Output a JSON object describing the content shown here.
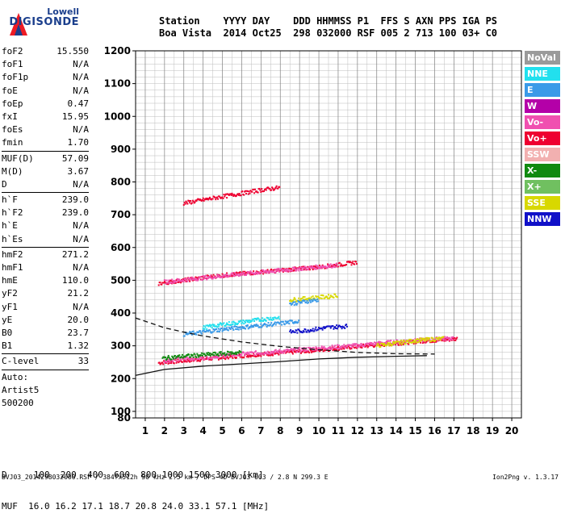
{
  "logo": {
    "top": "Lowell",
    "main": "DIGISONDE"
  },
  "header": {
    "labels": "Station    YYYY DAY    DDD HHMMSS P1  FFS S AXN PPS IGA PS",
    "values": "Boa Vista  2014 Oct25  298 032000 RSF 005 2 713 100 03+ C0"
  },
  "params_group1": [
    {
      "name": "foF2",
      "value": "15.550"
    },
    {
      "name": "foF1",
      "value": "N/A"
    },
    {
      "name": "foF1p",
      "value": "N/A"
    },
    {
      "name": "foE",
      "value": "N/A"
    },
    {
      "name": "foEp",
      "value": "0.47"
    },
    {
      "name": "fxI",
      "value": "15.95"
    },
    {
      "name": "foEs",
      "value": "N/A"
    },
    {
      "name": "fmin",
      "value": "1.70"
    }
  ],
  "params_group2": [
    {
      "name": "MUF(D)",
      "value": "57.09"
    },
    {
      "name": "M(D)",
      "value": "3.67"
    },
    {
      "name": "D",
      "value": "N/A"
    }
  ],
  "params_group3": [
    {
      "name": "h`F",
      "value": "239.0"
    },
    {
      "name": "h`F2",
      "value": "239.0"
    },
    {
      "name": "h`E",
      "value": "N/A"
    },
    {
      "name": "h`Es",
      "value": "N/A"
    }
  ],
  "params_group4": [
    {
      "name": "hmF2",
      "value": "271.2"
    },
    {
      "name": "hmF1",
      "value": "N/A"
    },
    {
      "name": "hmE",
      "value": "110.0"
    },
    {
      "name": "yF2",
      "value": "21.2"
    },
    {
      "name": "yF1",
      "value": "N/A"
    },
    {
      "name": "yE",
      "value": "20.0"
    },
    {
      "name": "B0",
      "value": "23.7"
    },
    {
      "name": "B1",
      "value": "1.32"
    }
  ],
  "clevel": {
    "name": "C-level",
    "value": "33"
  },
  "auto": {
    "line1": "Auto:",
    "line2": "Artist5",
    "line3": "500200"
  },
  "legend": [
    {
      "label": "NoVal",
      "color": "#9a9a9a"
    },
    {
      "label": "NNE",
      "color": "#22e0ee"
    },
    {
      "label": "E",
      "color": "#3a9ae8"
    },
    {
      "label": "W",
      "color": "#b400a8"
    },
    {
      "label": "Vo-",
      "color": "#f050b0"
    },
    {
      "label": "Vo+",
      "color": "#ee0030"
    },
    {
      "label": "SSW",
      "color": "#f2b0b0"
    },
    {
      "label": "X-",
      "color": "#108a10"
    },
    {
      "label": "X+",
      "color": "#70c060"
    },
    {
      "label": "SSE",
      "color": "#d8d800"
    },
    {
      "label": "NNW",
      "color": "#1010c8"
    }
  ],
  "bottom": {
    "d_line": "D     100  200  400  600  800 1000 1500 3000 [km]",
    "muf_line": "MUF  16.0 16.2 17.1 18.7 20.8 24.0 33.1 57.1 [MHz]"
  },
  "footer": {
    "left": "BVJ03_2014298032000.RSF / 384fx512h 50 kHz 2.5 km / DPS-4D BVJ03 003 / 2.8 N 299.3 E",
    "right": "Ion2Png v. 1.3.17"
  },
  "chart_data": {
    "type": "scatter",
    "xlim": [
      0.5,
      20.5
    ],
    "ylim": [
      80,
      1200
    ],
    "x_ticks": [
      1,
      2,
      3,
      4,
      5,
      6,
      7,
      8,
      9,
      10,
      11,
      12,
      13,
      14,
      15,
      16,
      17,
      18,
      19,
      20
    ],
    "y_ticks": [
      80,
      100,
      200,
      300,
      400,
      500,
      600,
      700,
      800,
      900,
      1000,
      1100,
      1200
    ],
    "grid": true,
    "legend_position": "right",
    "traces": [
      {
        "color": "#ee0030",
        "points": [
          [
            1.7,
            248
          ],
          [
            2.5,
            252
          ],
          [
            3.5,
            257
          ],
          [
            4.5,
            262
          ],
          [
            5.5,
            267
          ],
          [
            6.5,
            272
          ],
          [
            7.5,
            276
          ],
          [
            8.5,
            280
          ],
          [
            9.5,
            285
          ],
          [
            10.5,
            290
          ],
          [
            11.5,
            295
          ],
          [
            12.5,
            300
          ],
          [
            13.5,
            305
          ],
          [
            14.5,
            310
          ],
          [
            15.5,
            315
          ],
          [
            16.5,
            318
          ],
          [
            17.2,
            322
          ]
        ]
      },
      {
        "color": "#f050b0",
        "points": [
          [
            2,
            255
          ],
          [
            3,
            260
          ],
          [
            4,
            264
          ],
          [
            5,
            270
          ],
          [
            6,
            275
          ],
          [
            7,
            279
          ],
          [
            8,
            283
          ],
          [
            9,
            288
          ],
          [
            10,
            293
          ],
          [
            11,
            297
          ],
          [
            12,
            301
          ],
          [
            13,
            307
          ],
          [
            14,
            312
          ],
          [
            15,
            316
          ],
          [
            16,
            320
          ],
          [
            17,
            324
          ]
        ]
      },
      {
        "color": "#d8d800",
        "points": [
          [
            13,
            300
          ],
          [
            13.5,
            304
          ],
          [
            14,
            308
          ],
          [
            14.5,
            312
          ],
          [
            15,
            316
          ],
          [
            15.5,
            318
          ],
          [
            16,
            320
          ],
          [
            16.5,
            322
          ]
        ]
      },
      {
        "color": "#ee0030",
        "points": [
          [
            1.7,
            490
          ],
          [
            3,
            500
          ],
          [
            4,
            508
          ],
          [
            5,
            515
          ],
          [
            6,
            520
          ],
          [
            7,
            525
          ],
          [
            8,
            530
          ],
          [
            9,
            535
          ],
          [
            10,
            540
          ],
          [
            11,
            547
          ],
          [
            12,
            555
          ]
        ]
      },
      {
        "color": "#f050b0",
        "points": [
          [
            2,
            495
          ],
          [
            3.5,
            504
          ],
          [
            5,
            513
          ],
          [
            6.5,
            522
          ],
          [
            8,
            530
          ],
          [
            9.5,
            538
          ],
          [
            11,
            546
          ]
        ]
      },
      {
        "color": "#3a9ae8",
        "points": [
          [
            3,
            335
          ],
          [
            4,
            342
          ],
          [
            5,
            350
          ],
          [
            6,
            356
          ],
          [
            7,
            362
          ],
          [
            8,
            368
          ],
          [
            9,
            376
          ]
        ]
      },
      {
        "color": "#22e0ee",
        "points": [
          [
            4,
            355
          ],
          [
            5,
            365
          ],
          [
            6,
            372
          ],
          [
            7,
            380
          ],
          [
            8,
            387
          ]
        ]
      },
      {
        "color": "#1010c8",
        "points": [
          [
            8.5,
            342
          ],
          [
            9,
            345
          ],
          [
            9.5,
            348
          ],
          [
            10,
            352
          ],
          [
            10.5,
            356
          ],
          [
            11,
            358
          ],
          [
            11.5,
            360
          ]
        ]
      },
      {
        "color": "#d8d800",
        "points": [
          [
            8.5,
            440
          ],
          [
            9,
            442
          ],
          [
            9.5,
            445
          ],
          [
            10,
            448
          ],
          [
            10.5,
            450
          ],
          [
            11,
            455
          ]
        ]
      },
      {
        "color": "#3a9ae8",
        "points": [
          [
            8.5,
            428
          ],
          [
            9,
            432
          ],
          [
            9.5,
            437
          ],
          [
            10,
            440
          ]
        ]
      },
      {
        "color": "#ee0030",
        "points": [
          [
            3,
            735
          ],
          [
            4,
            745
          ],
          [
            5,
            755
          ],
          [
            6,
            765
          ],
          [
            7,
            775
          ],
          [
            8,
            783
          ]
        ]
      },
      {
        "color": "#108a10",
        "points": [
          [
            1.9,
            262
          ],
          [
            3,
            268
          ],
          [
            4,
            272
          ],
          [
            5,
            276
          ],
          [
            6,
            280
          ]
        ]
      }
    ],
    "profile_curves": [
      {
        "style": "solid",
        "points": [
          [
            0.5,
            210
          ],
          [
            2,
            228
          ],
          [
            4,
            238
          ],
          [
            6,
            245
          ],
          [
            8,
            252
          ],
          [
            10,
            260
          ],
          [
            12,
            265
          ],
          [
            14,
            268
          ],
          [
            15.6,
            270
          ]
        ]
      },
      {
        "style": "dashed",
        "points": [
          [
            0.5,
            385
          ],
          [
            2,
            355
          ],
          [
            3,
            342
          ],
          [
            4,
            330
          ],
          [
            6,
            312
          ],
          [
            8,
            298
          ],
          [
            10,
            288
          ],
          [
            12,
            280
          ],
          [
            14,
            276
          ],
          [
            16,
            275
          ]
        ]
      }
    ]
  }
}
